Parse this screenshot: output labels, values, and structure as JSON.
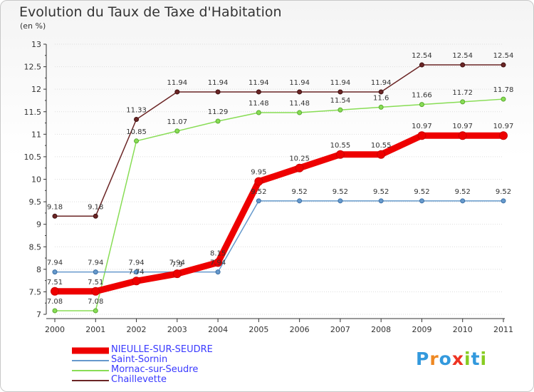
{
  "title": "Evolution du Taux de Taxe d'Habitation",
  "unit": "(en %)",
  "logo_text": "Proxiti",
  "colors": {
    "nieulle": "#ee0000",
    "saint_sornin": "#6699cc",
    "mornac": "#88dd55",
    "chaillevette": "#6b2525",
    "grid": "#dddddd",
    "axis": "#333333"
  },
  "chart_data": {
    "type": "line",
    "title": "Evolution du Taux de Taxe d'Habitation",
    "ylabel": "(en %)",
    "xlabel": "",
    "categories": [
      "2000",
      "2001",
      "2002",
      "2003",
      "2004",
      "2005",
      "2006",
      "2007",
      "2008",
      "2009",
      "2010",
      "2011"
    ],
    "ylim": [
      7,
      13
    ],
    "yticks": [
      "7",
      "7.5",
      "8",
      "8.5",
      "9",
      "9.5",
      "10",
      "10.5",
      "11",
      "11.5",
      "12",
      "12.5",
      "13"
    ],
    "series": [
      {
        "name": "NIEULLE-SUR-SEUDRE",
        "values": [
          7.51,
          7.51,
          7.74,
          7.9,
          8.15,
          9.95,
          10.25,
          10.55,
          10.55,
          10.97,
          10.97,
          10.97
        ],
        "labels": [
          "7.51",
          "7.51",
          "7.74",
          "7.9",
          "8.15",
          "9.95",
          "10.25",
          "10.55",
          "10.55",
          "10.97",
          "10.97",
          "10.97"
        ]
      },
      {
        "name": "Saint-Sornin",
        "values": [
          7.94,
          7.94,
          7.94,
          7.94,
          7.94,
          9.52,
          9.52,
          9.52,
          9.52,
          9.52,
          9.52,
          9.52
        ],
        "labels": [
          "7.94",
          "7.94",
          "7.94",
          "7.94",
          "7.94",
          "9.52",
          "9.52",
          "9.52",
          "9.52",
          "9.52",
          "9.52",
          "9.52"
        ]
      },
      {
        "name": "Mornac-sur-Seudre",
        "values": [
          7.08,
          7.08,
          10.85,
          11.07,
          11.29,
          11.48,
          11.48,
          11.54,
          11.6,
          11.66,
          11.72,
          11.78
        ],
        "labels": [
          "7.08",
          "7.08",
          "10.85",
          "11.07",
          "11.29",
          "11.48",
          "11.48",
          "11.54",
          "11.6",
          "11.66",
          "11.72",
          "11.78"
        ]
      },
      {
        "name": "Chaillevette",
        "values": [
          9.18,
          9.18,
          11.33,
          11.94,
          11.94,
          11.94,
          11.94,
          11.94,
          11.94,
          12.54,
          12.54,
          12.54
        ],
        "labels": [
          "9.18",
          "9.18",
          "11.33",
          "11.94",
          "11.94",
          "11.94",
          "11.94",
          "11.94",
          "11.94",
          "12.54",
          "12.54",
          "12.54"
        ]
      }
    ],
    "legend": [
      "NIEULLE-SUR-SEUDRE",
      "Saint-Sornin",
      "Mornac-sur-Seudre",
      "Chaillevette"
    ],
    "legend_position": "bottom-left"
  }
}
